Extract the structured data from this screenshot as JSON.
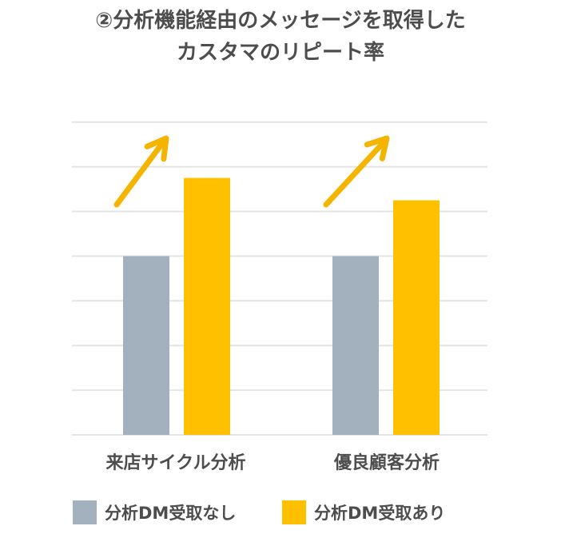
{
  "title": {
    "line1": "②分析機能経由のメッセージを取得した",
    "line2": "カスタマのリピート率"
  },
  "colors": {
    "no_dm": "#a3b0be",
    "with_dm": "#ffc000",
    "arrow": "#f5b400",
    "grid": "#e4e4e4"
  },
  "chart_data": {
    "type": "bar",
    "categories": [
      "来店サイクル分析",
      "優良顧客分析"
    ],
    "series": [
      {
        "name": "分析DM受取なし",
        "values": [
          4,
          4
        ]
      },
      {
        "name": "分析DM受取あり",
        "values": [
          5.75,
          5.25
        ]
      }
    ],
    "ylim": [
      0,
      7.8
    ],
    "grid": true,
    "y_tick_labels_shown": false,
    "legend": "bottom",
    "annotations": [
      "upward-arrow",
      "upward-arrow"
    ]
  }
}
